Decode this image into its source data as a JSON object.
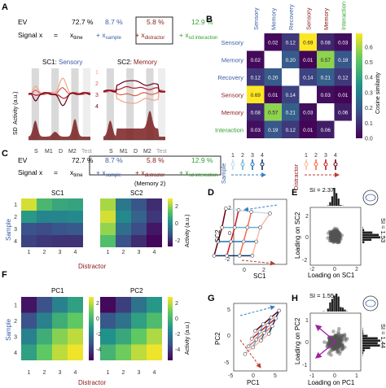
{
  "colors": {
    "sample": "#3a5fa8",
    "distractor": "#8b1a1a",
    "interaction": "#2ea02e",
    "gray": "#999999",
    "grid": "#d9d9d9"
  },
  "panelA": {
    "letter": "A",
    "ev_label": "EV",
    "ev_values": [
      "72.7 %",
      "8.7 %",
      "5.8 %",
      "12.9 %"
    ],
    "signal_label": "Signal x",
    "eq": "=",
    "terms": [
      "x",
      "+ x",
      "+ x",
      "+ x"
    ],
    "subs": [
      "time",
      "sample",
      "distractor",
      "sd interaction"
    ],
    "sc1_title": "SC1: ",
    "sc1_name": "Sensory",
    "sc2_title": "SC2: ",
    "sc2_name": "Memory",
    "ylabel_top": "Activity (a.u.)",
    "ylabel_bottom": "SD",
    "legend": [
      "1",
      "2",
      "3",
      "4"
    ],
    "xticks": [
      "S",
      "M1",
      "D",
      "M2",
      "Test"
    ]
  },
  "panelB": {
    "letter": "B",
    "labels": [
      "Sensory",
      "Memory",
      "Recovery",
      "Sensory",
      "Memory",
      "Interaction"
    ],
    "label_colors": [
      "#3a5fa8",
      "#3a5fa8",
      "#3a5fa8",
      "#8b1a1a",
      "#8b1a1a",
      "#2ea02e"
    ],
    "matrix": [
      [
        null,
        0.02,
        0.12,
        0.69,
        0.08,
        0.03
      ],
      [
        0.02,
        null,
        0.2,
        0.01,
        0.57,
        0.19
      ],
      [
        0.12,
        0.2,
        null,
        0.14,
        0.21,
        0.12
      ],
      [
        0.69,
        0.01,
        0.14,
        null,
        0.03,
        0.01
      ],
      [
        0.08,
        0.57,
        0.21,
        0.03,
        null,
        0.06
      ],
      [
        0.03,
        0.19,
        0.12,
        0.01,
        0.06,
        null
      ]
    ],
    "cells": [
      [
        "",
        "0.02",
        "0.12",
        "0.69",
        "0.08",
        "0.03"
      ],
      [
        "0.02",
        "",
        "0.20",
        "0.01",
        "0.57",
        "0.19"
      ],
      [
        "0.12",
        "0.20",
        "",
        "0.14",
        "0.21",
        "0.12"
      ],
      [
        "0.69",
        "0.01",
        "0.14",
        "",
        "0.03",
        "0.01"
      ],
      [
        "0.08",
        "0.57",
        "0.21",
        "0.03",
        "",
        "0.06"
      ],
      [
        "0.03",
        "0.19",
        "0.12",
        "0.01",
        "0.06",
        ""
      ]
    ],
    "cbar_ticks": [
      "0.6",
      "0.5",
      "0.4",
      "0.3",
      "0.2",
      "0.1",
      "0.0"
    ],
    "cbar_label": "Cosine similarity"
  },
  "panelC": {
    "letter": "C",
    "ev_label": "EV",
    "ev_values": [
      "72.7 %",
      "8.7 %",
      "5.8 %",
      "12.9 %"
    ],
    "signal_label": "Signal x",
    "eq": "=",
    "terms": [
      "x",
      "+ x",
      "+ x",
      "+ x"
    ],
    "subs": [
      "time",
      "sample",
      "distractor",
      "sd interaction"
    ],
    "note": "(Memory 2)",
    "legend_numbers": [
      "1",
      "2",
      "3",
      "4"
    ],
    "legend_sample": "Sample",
    "legend_distractor": "Distractor",
    "sc1_title": "SC1",
    "sc2_title": "SC2",
    "yticks": [
      "1",
      "2",
      "3",
      "4"
    ],
    "xticks": [
      "1",
      "2",
      "3",
      "4"
    ],
    "ylabel": "Sample",
    "xlabel": "Distractor",
    "cbar_ticks": [
      "2",
      "0",
      "-2"
    ],
    "cbar_label": "Activity (a.u.)",
    "sc1": [
      [
        2.6,
        1.0,
        0.6,
        0.5
      ],
      [
        0.2,
        -0.3,
        -0.3,
        -0.2
      ],
      [
        -1.5,
        -1.6,
        -1.4,
        -1.3
      ],
      [
        -1.8,
        -2.0,
        -2.1,
        -2.1
      ]
    ],
    "sc2": [
      [
        2.2,
        -0.6,
        -1.4,
        -2.2
      ],
      [
        2.6,
        -0.2,
        -1.1,
        -2.0
      ],
      [
        2.0,
        -0.8,
        -1.6,
        -2.6
      ],
      [
        1.2,
        -1.5,
        -2.2,
        -2.9
      ]
    ]
  },
  "panelD": {
    "letter": "D",
    "xlabel": "SC1",
    "ylabel": "SC2",
    "xticks": [
      "0",
      "2"
    ],
    "yticks": [
      "2",
      "0",
      "-2"
    ]
  },
  "panelE": {
    "letter": "E",
    "si_top": "SI = 2.37",
    "si_right": "SI = 1.53",
    "xlabel": "Loading on SC1",
    "ylabel": "Loading on SC2",
    "xticks": [
      "-2",
      "0",
      "2"
    ],
    "yticks": [
      "2",
      "0",
      "-2"
    ]
  },
  "panelF": {
    "letter": "F",
    "pc1_title": "PC1",
    "pc2_title": "PC2",
    "yticks": [
      "1",
      "2",
      "3",
      "4"
    ],
    "xticks": [
      "1",
      "2",
      "3",
      "4"
    ],
    "ylabel": "Sample",
    "xlabel": "Distractor",
    "cbar1_ticks": [
      "2",
      "0",
      "-2",
      "-4"
    ],
    "cbar2_ticks": [
      "2",
      "0",
      "-2",
      "-4"
    ],
    "cbar_label": "Activity (a.u.)",
    "pc1": [
      [
        -4.5,
        -3.0,
        -1.5,
        -0.5
      ],
      [
        -3.0,
        -1.5,
        0.0,
        1.0
      ],
      [
        -1.5,
        0.0,
        1.5,
        2.2
      ],
      [
        -0.5,
        1.0,
        2.2,
        2.8
      ]
    ],
    "pc2": [
      [
        -4.8,
        -3.5,
        -2.0,
        -0.8
      ],
      [
        -2.8,
        -2.0,
        -0.5,
        0.5
      ],
      [
        -1.0,
        -0.2,
        1.0,
        2.0
      ],
      [
        0.2,
        1.2,
        2.2,
        2.8
      ]
    ]
  },
  "panelG": {
    "letter": "G",
    "xlabel": "PC1",
    "ylabel": "PC2",
    "xticks": [
      "-5",
      "0",
      "5"
    ],
    "yticks": [
      "5",
      "0",
      "-5"
    ]
  },
  "panelH": {
    "letter": "H",
    "si_top": "SI = 1.55",
    "si_right": "SI = 1.44",
    "xlabel": "Loading on PC1",
    "ylabel": "Loading on PC2",
    "xticks": [
      "-1",
      "0",
      "1"
    ],
    "yticks": [
      "1",
      "0",
      "-1"
    ]
  }
}
